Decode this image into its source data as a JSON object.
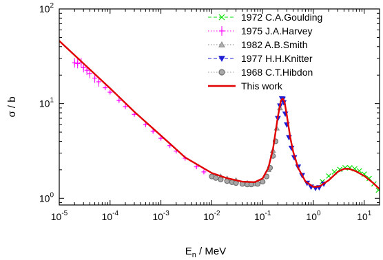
{
  "chart_data": {
    "type": "scatter",
    "xlabel_main": "E",
    "xlabel_sub": "n",
    "xlabel_rest": " / MeV",
    "ylabel": "σ / b",
    "xscale": "log",
    "yscale": "log",
    "xlim": [
      1e-05,
      20
    ],
    "ylim": [
      0.85,
      100
    ],
    "grid": false,
    "legend_position": "top-right",
    "x_ticks": [
      {
        "base": "10",
        "exp": "-5",
        "value": 1e-05
      },
      {
        "base": "10",
        "exp": "-4",
        "value": 0.0001
      },
      {
        "base": "10",
        "exp": "-3",
        "value": 0.001
      },
      {
        "base": "10",
        "exp": "-2",
        "value": 0.01
      },
      {
        "base": "10",
        "exp": "-1",
        "value": 0.1
      },
      {
        "base": "10",
        "exp": "0",
        "value": 1
      },
      {
        "base": "10",
        "exp": "1",
        "value": 10
      }
    ],
    "y_ticks": [
      {
        "base": "10",
        "exp": "0",
        "value": 1
      },
      {
        "base": "10",
        "exp": "1",
        "value": 10
      },
      {
        "base": "10",
        "exp": "2",
        "value": 100
      }
    ],
    "series": [
      {
        "name": "1972 C.A.Goulding",
        "color": "#00e000",
        "marker": "x",
        "line": "dashed",
        "x": [
          1.5,
          2.0,
          2.6,
          3.3,
          4.2,
          5.2,
          6.5,
          8.0,
          10.0,
          12.5,
          15.5,
          19.0
        ],
        "y": [
          1.5,
          1.72,
          1.9,
          2.02,
          2.1,
          2.1,
          2.05,
          1.95,
          1.8,
          1.62,
          1.42,
          1.22
        ]
      },
      {
        "name": "1975 J.A.Harvey",
        "color": "#ff00ff",
        "marker": "+",
        "line": "dotted",
        "x": [
          2e-05,
          2.3e-05,
          2.7e-05,
          3e-05,
          3.5e-05,
          4e-05,
          5e-05,
          6e-05,
          8e-05,
          0.0001,
          0.00015,
          0.0002,
          0.0003,
          0.0005,
          0.0007,
          0.001,
          0.0015,
          0.002,
          0.003,
          0.005,
          0.007,
          0.01
        ],
        "y": [
          27,
          26.5,
          27,
          24,
          22.5,
          20.8,
          18.6,
          17,
          14.7,
          13.2,
          10.8,
          9.3,
          7.7,
          6.0,
          5.1,
          4.3,
          3.6,
          3.15,
          2.65,
          2.15,
          1.9,
          1.72
        ]
      },
      {
        "name": "1982 A.B.Smith",
        "color": "#888888",
        "marker": "triangle",
        "line": "dotted",
        "x": [
          0.015,
          0.02,
          0.03,
          0.05,
          0.07,
          0.1,
          0.13,
          0.16,
          0.19,
          0.22
        ],
        "y": [
          1.7,
          1.62,
          1.55,
          1.45,
          1.42,
          1.55,
          2.0,
          3.2,
          5.5,
          9.0
        ]
      },
      {
        "name": "1977 H.H.Knitter",
        "color": "#1f1fd6",
        "marker": "triangle-down",
        "line": "dashed",
        "x": [
          0.2,
          0.22,
          0.24,
          0.25,
          0.26,
          0.28,
          0.3,
          0.33,
          0.37,
          0.42,
          0.5,
          0.6,
          0.75,
          0.9,
          1.1,
          1.3,
          1.6
        ],
        "y": [
          7.0,
          9.5,
          11.3,
          11.2,
          10.3,
          7.8,
          6.0,
          4.4,
          3.4,
          2.7,
          2.15,
          1.75,
          1.45,
          1.32,
          1.28,
          1.3,
          1.42
        ]
      },
      {
        "name": "1968 C.T.Hibdon",
        "color": "#909090",
        "marker": "circle",
        "line": "dotted",
        "x": [
          0.01,
          0.012,
          0.015,
          0.02,
          0.025,
          0.03,
          0.04,
          0.05,
          0.06,
          0.08,
          0.1,
          0.12,
          0.14,
          0.16,
          0.18
        ],
        "y": [
          1.7,
          1.64,
          1.58,
          1.52,
          1.48,
          1.45,
          1.42,
          1.4,
          1.4,
          1.42,
          1.5,
          1.7,
          2.1,
          2.8,
          4.0
        ]
      },
      {
        "name": "This work",
        "color": "#e00000",
        "marker": "none",
        "line": "solid",
        "x": [
          1e-05,
          3e-05,
          0.0001,
          0.0003,
          0.001,
          0.003,
          0.01,
          0.02,
          0.04,
          0.07,
          0.1,
          0.13,
          0.16,
          0.2,
          0.23,
          0.25,
          0.27,
          0.3,
          0.35,
          0.4,
          0.5,
          0.7,
          1.0,
          1.3,
          2.0,
          3.0,
          4.0,
          5.0,
          7.0,
          10.0,
          15.0,
          20.0
        ],
        "y": [
          46,
          26.5,
          14.5,
          8.2,
          4.6,
          2.7,
          1.85,
          1.63,
          1.5,
          1.48,
          1.62,
          2.1,
          3.3,
          7.3,
          10.8,
          11.3,
          10.5,
          7.5,
          4.4,
          3.1,
          2.1,
          1.5,
          1.32,
          1.33,
          1.55,
          1.9,
          2.05,
          2.05,
          1.92,
          1.72,
          1.45,
          1.25
        ]
      }
    ]
  }
}
